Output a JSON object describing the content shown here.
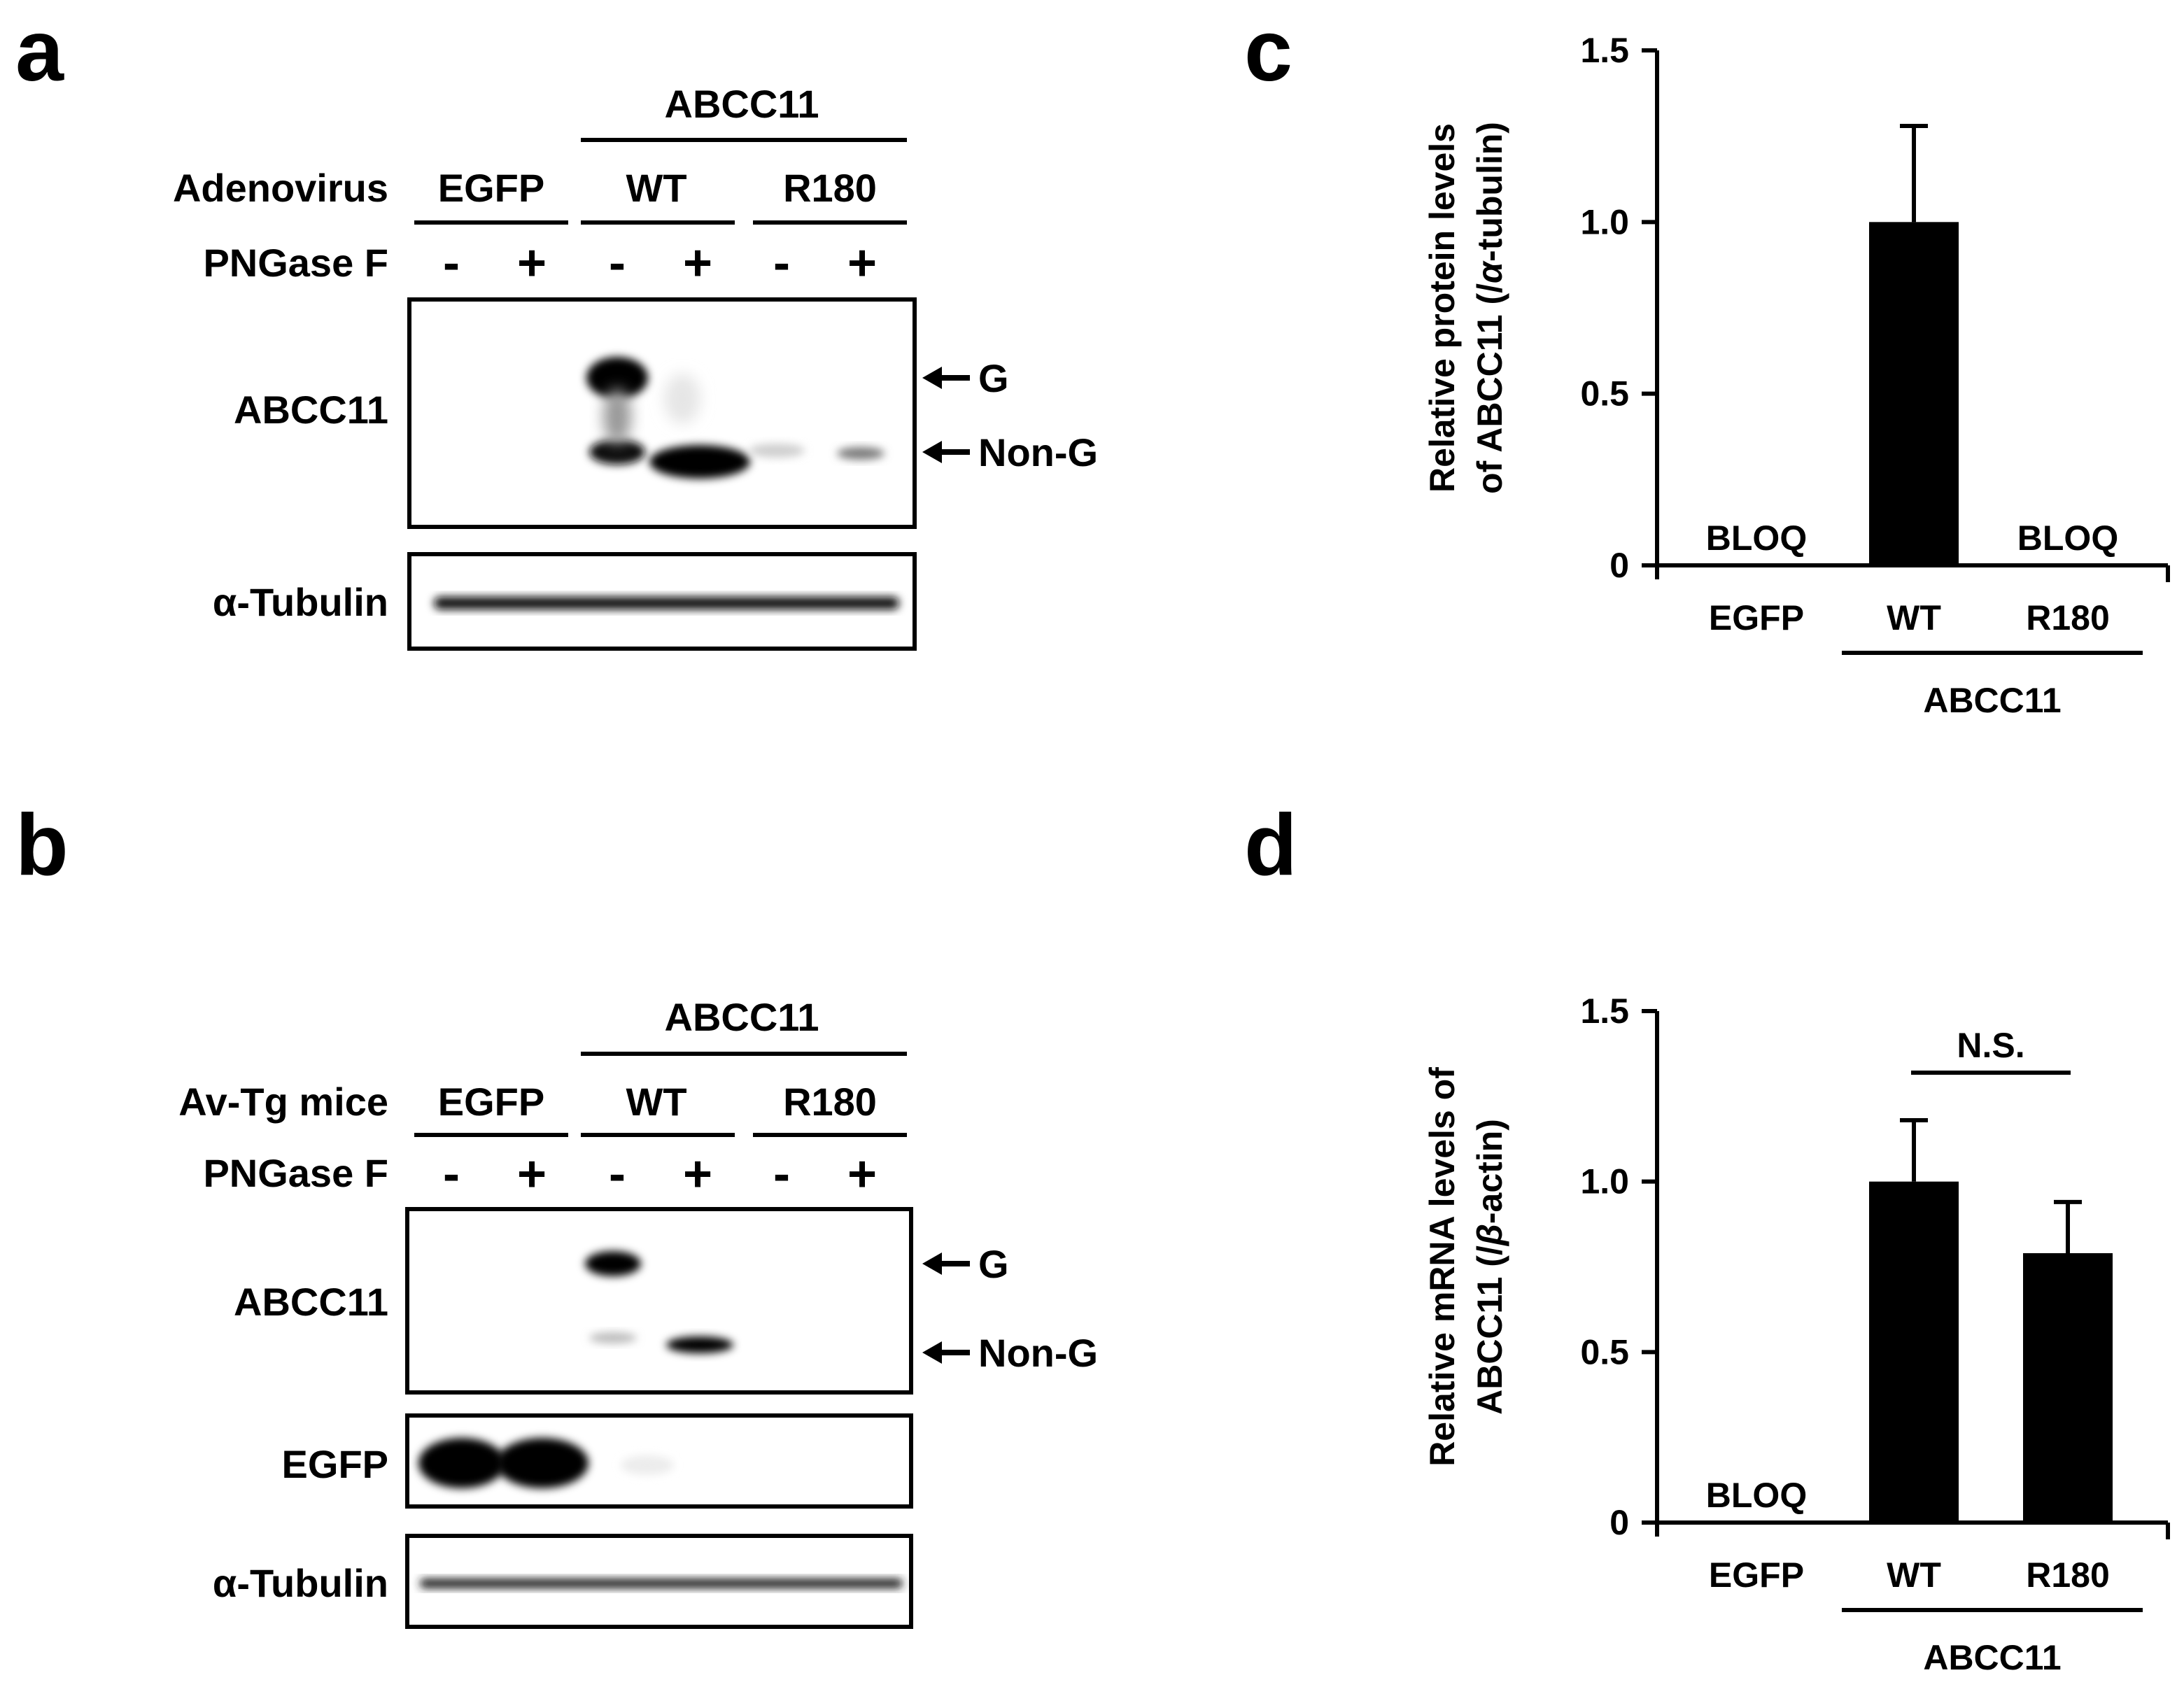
{
  "panels": {
    "a": "a",
    "b": "b",
    "c": "c",
    "d": "d"
  },
  "blot_a": {
    "group_label": "ABCC11",
    "row_label": "Adenovirus",
    "lanes": [
      "EGFP",
      "WT",
      "R180"
    ],
    "treatment_label": "PNGase F",
    "treatment": [
      "-",
      "+",
      "-",
      "+",
      "-",
      "+"
    ],
    "rows": [
      "ABCC11",
      "α-Tubulin"
    ],
    "markers": [
      "G",
      "Non-G"
    ]
  },
  "blot_b": {
    "group_label": "ABCC11",
    "row_label": "Av-Tg mice",
    "lanes": [
      "EGFP",
      "WT",
      "R180"
    ],
    "treatment_label": "PNGase F",
    "treatment": [
      "-",
      "+",
      "-",
      "+",
      "-",
      "+"
    ],
    "rows": [
      "ABCC11",
      "EGFP",
      "α-Tubulin"
    ],
    "markers": [
      "G",
      "Non-G"
    ]
  },
  "chart_data": [
    {
      "type": "bar",
      "categories": [
        "EGFP",
        "WT",
        "R180"
      ],
      "group_label": "ABCC11",
      "values": [
        null,
        1.0,
        null
      ],
      "errors": [
        null,
        0.28,
        null
      ],
      "bar_labels": [
        "BLOQ",
        "",
        "BLOQ"
      ],
      "ylabel_line1": "Relative protein levels",
      "ylabel_line2_prefix": "of ABCC11 (/",
      "ylabel_line2_symbol": "α",
      "ylabel_line2_suffix": "-tubulin)",
      "ylim": [
        0,
        1.5
      ],
      "yticks": [
        "0",
        "0.5",
        "1.0",
        "1.5"
      ]
    },
    {
      "type": "bar",
      "categories": [
        "EGFP",
        "WT",
        "R180"
      ],
      "group_label": "ABCC11",
      "values": [
        null,
        1.0,
        0.79
      ],
      "errors": [
        null,
        0.18,
        0.15
      ],
      "bar_labels": [
        "BLOQ",
        "",
        ""
      ],
      "annotation": "N.S.",
      "ylabel_line1": "Relative mRNA levels of",
      "ylabel_line2_prefix": "ABCC11 (/",
      "ylabel_line2_symbol": "β",
      "ylabel_line2_suffix": "-actin)",
      "ylim": [
        0,
        1.5
      ],
      "yticks": [
        "0",
        "0.5",
        "1.0",
        "1.5"
      ]
    }
  ]
}
